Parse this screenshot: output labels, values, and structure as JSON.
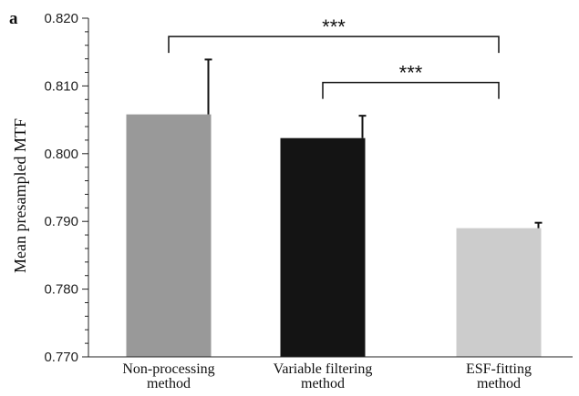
{
  "chart_data": {
    "type": "bar",
    "panel_label": "a",
    "ylabel": "Mean presampled MTF",
    "xlabel": "",
    "ylim": [
      0.77,
      0.82
    ],
    "yticks": [
      "0.770",
      "0.780",
      "0.790",
      "0.800",
      "0.810",
      "0.820"
    ],
    "categories": [
      [
        "Non-processing",
        "method"
      ],
      [
        "Variable filtering",
        "method"
      ],
      [
        "ESF-fitting",
        "method"
      ]
    ],
    "values": [
      0.8058,
      0.8023,
      0.789
    ],
    "errors": [
      0.0081,
      0.0033,
      0.0008
    ],
    "colors": [
      "#999999",
      "#141414",
      "#cccccc"
    ],
    "significance": [
      {
        "from": 0,
        "to": 2,
        "label": "***",
        "y": 0.8173
      },
      {
        "from": 1,
        "to": 2,
        "label": "***",
        "y": 0.8105
      }
    ],
    "grid": false,
    "legend": "none"
  }
}
